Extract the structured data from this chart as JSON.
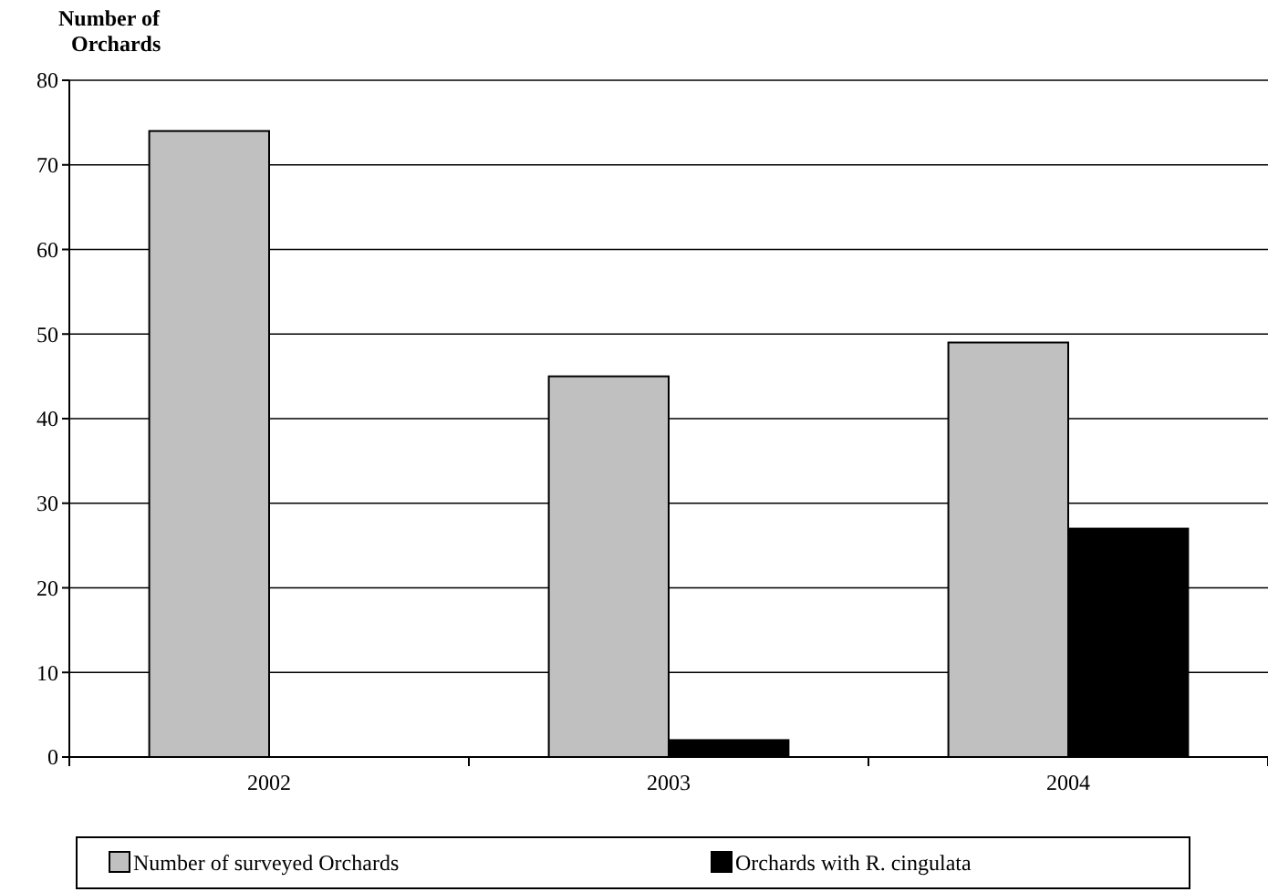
{
  "chart_data": {
    "type": "bar",
    "ylabel": "Number of Orchards",
    "categories": [
      "2002",
      "2003",
      "2004"
    ],
    "series": [
      {
        "name": "Number of surveyed Orchards",
        "color": "#c0c0c0",
        "values": [
          74,
          45,
          49
        ]
      },
      {
        "name": "Orchards with R. cingulata",
        "color": "#000000",
        "values": [
          0,
          2,
          27
        ]
      }
    ],
    "ylim": [
      0,
      80
    ],
    "yticks": [
      0,
      10,
      20,
      30,
      40,
      50,
      60,
      70,
      80
    ],
    "grid": "y",
    "legend": "bottom"
  }
}
